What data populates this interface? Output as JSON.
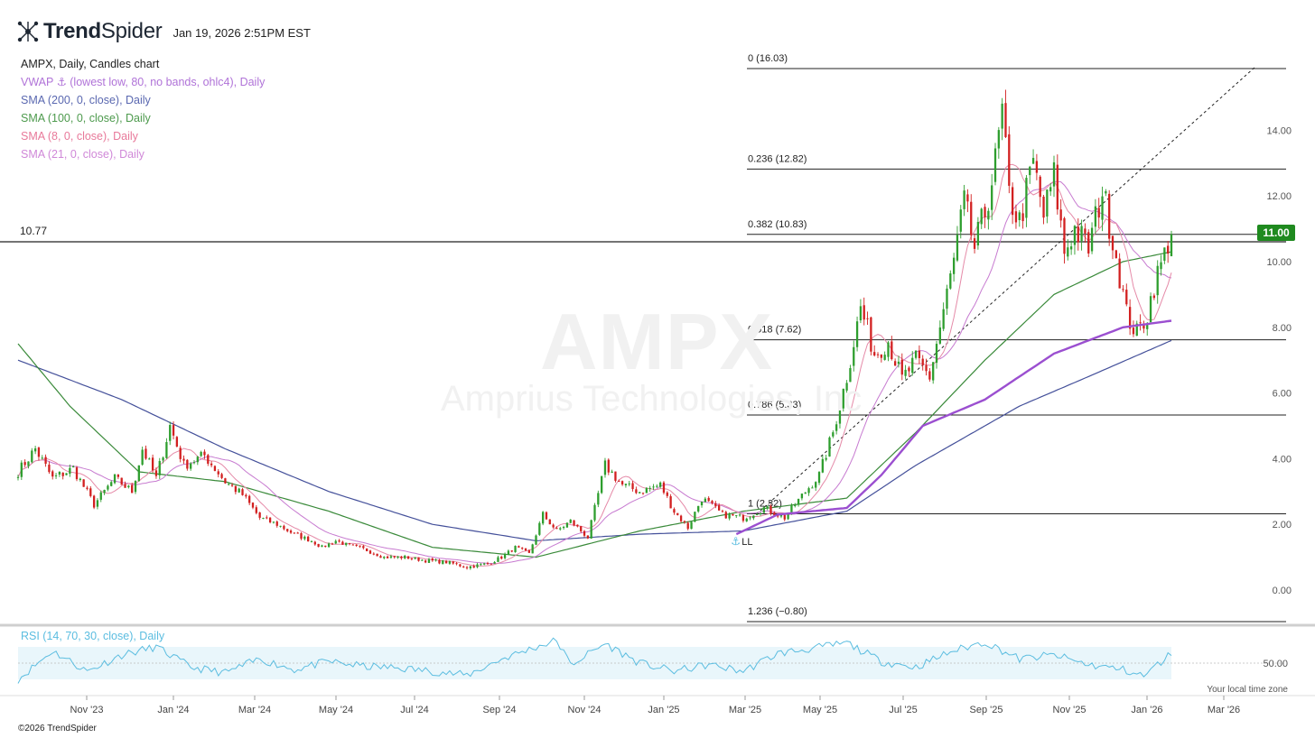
{
  "header": {
    "brand_bold": "Trend",
    "brand_light": "Spider",
    "timestamp": "Jan 19, 2026 2:51PM EST"
  },
  "legend": {
    "title": "AMPX, Daily, Candles chart",
    "vwap": "VWAP ⚓ (lowest low, 80, no bands, ohlc4), Daily",
    "sma200": "SMA (200, 0, close), Daily",
    "sma100": "SMA (100, 0, close), Daily",
    "sma8": "SMA (8, 0, close), Daily",
    "sma21": "SMA (21, 0, close), Daily"
  },
  "watermark": {
    "ticker": "AMPX",
    "company": "Amprius Technologies, Inc"
  },
  "price_tag": "11.00",
  "hline_label": "10.77",
  "rsi": {
    "legend": "RSI (14, 70, 30, close), Daily",
    "tick": "50.00"
  },
  "timezone_label": "Your local time zone",
  "copyright": "©2026 TrendSpider",
  "colors": {
    "up": "#2e9e2e",
    "down": "#d22020",
    "vwap": "#9b4fd0",
    "sma200": "#44509a",
    "sma100": "#3a8a3a",
    "sma8": "#e58aa8",
    "sma21": "#c77ad0",
    "rsi": "#5bbde0",
    "legend_vwap": "#b073d8",
    "legend_sma200": "#5a68b0",
    "legend_sma100": "#4d9a4d",
    "legend_sma8": "#e8799a",
    "legend_sma21": "#d088d8",
    "legend_rsi": "#5bbde0",
    "price_tag": "#1f8a1f"
  },
  "chart_data": {
    "type": "candlestick",
    "title": "AMPX, Daily, Candles chart",
    "ylim": [
      -0.8,
      16.03
    ],
    "y_ticks": [
      "0.00",
      "2.00",
      "4.00",
      "6.00",
      "8.00",
      "10.00",
      "12.00",
      "14.00"
    ],
    "x_ticks": [
      "Nov '23",
      "Jan '24",
      "Mar '24",
      "May '24",
      "Jul '24",
      "Sep '24",
      "Nov '24",
      "Jan '25",
      "Mar '25",
      "May '25",
      "Jul '25",
      "Sep '25",
      "Nov '25",
      "Jan '26",
      "Mar '26"
    ],
    "fib_levels": [
      {
        "label": "0 (16.03)",
        "value": 16.03
      },
      {
        "label": "0.236 (12.82)",
        "value": 12.82
      },
      {
        "label": "0.382 (10.83)",
        "value": 10.83
      },
      {
        "label": "0.618 (7.62)",
        "value": 7.62
      },
      {
        "label": "0.786 (5.33)",
        "value": 5.33
      },
      {
        "label": "1 (2.32)",
        "value": 2.32
      },
      {
        "label": "1.236 (−0.80)",
        "value": -0.8
      }
    ],
    "last_price": 11.0,
    "horizontal_line": 10.77,
    "anchor_label": "LL",
    "price_path": [
      [
        0,
        3.6
      ],
      [
        5,
        4.3
      ],
      [
        10,
        3.4
      ],
      [
        16,
        3.7
      ],
      [
        22,
        2.6
      ],
      [
        28,
        3.4
      ],
      [
        33,
        3.0
      ],
      [
        36,
        4.3
      ],
      [
        40,
        3.4
      ],
      [
        44,
        5.0
      ],
      [
        48,
        3.8
      ],
      [
        54,
        4.1
      ],
      [
        60,
        3.3
      ],
      [
        65,
        2.9
      ],
      [
        70,
        2.2
      ],
      [
        75,
        2.0
      ],
      [
        80,
        1.7
      ],
      [
        85,
        1.5
      ],
      [
        88,
        1.3
      ],
      [
        92,
        1.5
      ],
      [
        96,
        1.35
      ],
      [
        100,
        1.25
      ],
      [
        106,
        1.0
      ],
      [
        112,
        1.0
      ],
      [
        118,
        0.9
      ],
      [
        124,
        0.85
      ],
      [
        130,
        0.7
      ],
      [
        136,
        0.8
      ],
      [
        140,
        1.0
      ],
      [
        144,
        1.3
      ],
      [
        148,
        1.1
      ],
      [
        152,
        2.3
      ],
      [
        156,
        1.8
      ],
      [
        160,
        2.1
      ],
      [
        165,
        1.6
      ],
      [
        170,
        3.8
      ],
      [
        175,
        3.2
      ],
      [
        180,
        3.0
      ],
      [
        186,
        3.2
      ],
      [
        190,
        2.4
      ],
      [
        194,
        1.9
      ],
      [
        198,
        2.8
      ],
      [
        204,
        2.3
      ],
      [
        210,
        2.2
      ],
      [
        216,
        2.5
      ],
      [
        222,
        2.2
      ],
      [
        228,
        3.0
      ],
      [
        232,
        3.5
      ],
      [
        236,
        4.8
      ],
      [
        240,
        6.5
      ],
      [
        244,
        8.6
      ],
      [
        248,
        7.2
      ],
      [
        252,
        7.6
      ],
      [
        256,
        6.4
      ],
      [
        260,
        7.0
      ],
      [
        264,
        6.5
      ],
      [
        268,
        8.5
      ],
      [
        271,
        10.0
      ],
      [
        274,
        11.8
      ],
      [
        277,
        10.4
      ],
      [
        280,
        11.5
      ],
      [
        283,
        13.0
      ],
      [
        285,
        14.5
      ],
      [
        287,
        12.0
      ],
      [
        290,
        11.2
      ],
      [
        294,
        13.0
      ],
      [
        297,
        11.4
      ],
      [
        300,
        12.6
      ],
      [
        303,
        10.3
      ],
      [
        306,
        11.0
      ],
      [
        310,
        10.4
      ],
      [
        314,
        12.2
      ],
      [
        318,
        10.2
      ],
      [
        321,
        8.4
      ],
      [
        324,
        7.8
      ],
      [
        327,
        8.4
      ],
      [
        329,
        9.3
      ],
      [
        332,
        10.2
      ],
      [
        334,
        11.0
      ]
    ],
    "sma200_path": [
      [
        0,
        7.0
      ],
      [
        30,
        5.8
      ],
      [
        60,
        4.3
      ],
      [
        90,
        3.0
      ],
      [
        120,
        2.0
      ],
      [
        150,
        1.5
      ],
      [
        180,
        1.7
      ],
      [
        210,
        1.8
      ],
      [
        240,
        2.4
      ],
      [
        260,
        3.8
      ],
      [
        290,
        5.6
      ],
      [
        310,
        6.5
      ],
      [
        334,
        7.6
      ]
    ],
    "sma100_path": [
      [
        0,
        7.5
      ],
      [
        15,
        5.6
      ],
      [
        35,
        3.6
      ],
      [
        60,
        3.3
      ],
      [
        90,
        2.4
      ],
      [
        120,
        1.3
      ],
      [
        150,
        1.0
      ],
      [
        180,
        1.8
      ],
      [
        210,
        2.4
      ],
      [
        240,
        2.8
      ],
      [
        260,
        4.8
      ],
      [
        280,
        7.0
      ],
      [
        300,
        9.0
      ],
      [
        320,
        10.0
      ],
      [
        334,
        10.3
      ]
    ],
    "vwap_path": [
      [
        208,
        1.7
      ],
      [
        220,
        2.3
      ],
      [
        240,
        2.5
      ],
      [
        250,
        3.5
      ],
      [
        262,
        5.0
      ],
      [
        280,
        5.8
      ],
      [
        300,
        7.2
      ],
      [
        320,
        8.0
      ],
      [
        334,
        8.2
      ]
    ],
    "rsi_path": [
      [
        0,
        30
      ],
      [
        10,
        65
      ],
      [
        20,
        40
      ],
      [
        30,
        60
      ],
      [
        40,
        70
      ],
      [
        50,
        45
      ],
      [
        60,
        38
      ],
      [
        70,
        55
      ],
      [
        80,
        42
      ],
      [
        90,
        52
      ],
      [
        100,
        46
      ],
      [
        110,
        44
      ],
      [
        120,
        40
      ],
      [
        130,
        35
      ],
      [
        140,
        55
      ],
      [
        150,
        70
      ],
      [
        156,
        78
      ],
      [
        160,
        48
      ],
      [
        170,
        74
      ],
      [
        180,
        50
      ],
      [
        190,
        40
      ],
      [
        200,
        48
      ],
      [
        210,
        40
      ],
      [
        220,
        62
      ],
      [
        230,
        68
      ],
      [
        240,
        75
      ],
      [
        250,
        52
      ],
      [
        260,
        45
      ],
      [
        270,
        64
      ],
      [
        280,
        76
      ],
      [
        290,
        55
      ],
      [
        300,
        60
      ],
      [
        310,
        48
      ],
      [
        320,
        42
      ],
      [
        326,
        34
      ],
      [
        334,
        62
      ]
    ]
  }
}
